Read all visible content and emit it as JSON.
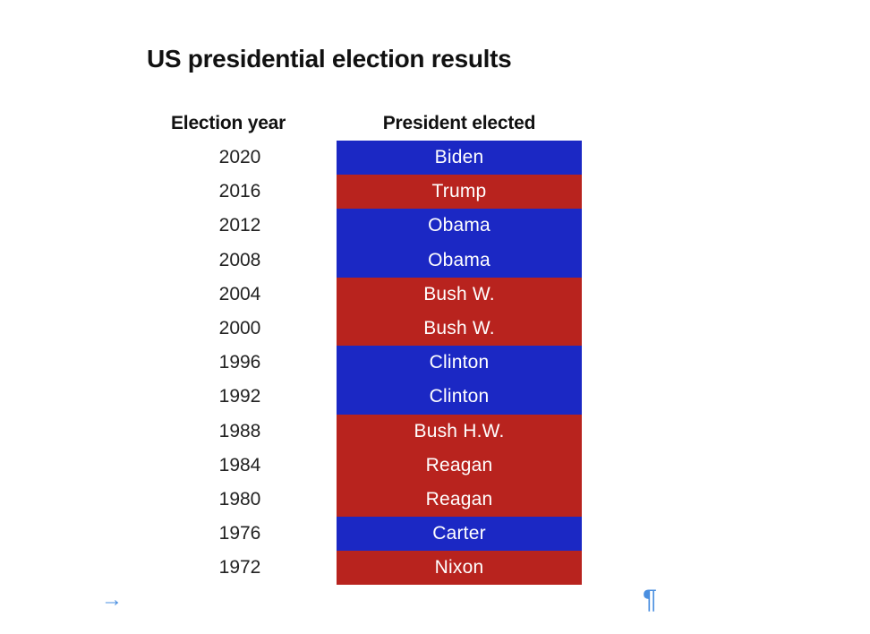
{
  "chart_data": {
    "type": "table",
    "title": "US presidential election results",
    "columns": [
      "Election year",
      "President elected"
    ],
    "rows": [
      {
        "year": "2020",
        "president": "Biden",
        "party_color": "blue"
      },
      {
        "year": "2016",
        "president": "Trump",
        "party_color": "red"
      },
      {
        "year": "2012",
        "president": "Obama",
        "party_color": "blue"
      },
      {
        "year": "2008",
        "president": "Obama",
        "party_color": "blue"
      },
      {
        "year": "2004",
        "president": "Bush W.",
        "party_color": "red"
      },
      {
        "year": "2000",
        "president": "Bush W.",
        "party_color": "red"
      },
      {
        "year": "1996",
        "president": "Clinton",
        "party_color": "blue"
      },
      {
        "year": "1992",
        "president": "Clinton",
        "party_color": "blue"
      },
      {
        "year": "1988",
        "president": "Bush H.W.",
        "party_color": "red"
      },
      {
        "year": "1984",
        "president": "Reagan",
        "party_color": "red"
      },
      {
        "year": "1980",
        "president": "Reagan",
        "party_color": "red"
      },
      {
        "year": "1976",
        "president": "Carter",
        "party_color": "blue"
      },
      {
        "year": "1972",
        "president": "Nixon",
        "party_color": "red"
      }
    ],
    "colors": {
      "blue": "#1b28c4",
      "red": "#b8231e"
    }
  },
  "marks": {
    "tab_icon": "tab-arrow-icon",
    "tab_glyph": "→",
    "paragraph_icon": "pilcrow-icon",
    "paragraph_glyph": "¶"
  }
}
